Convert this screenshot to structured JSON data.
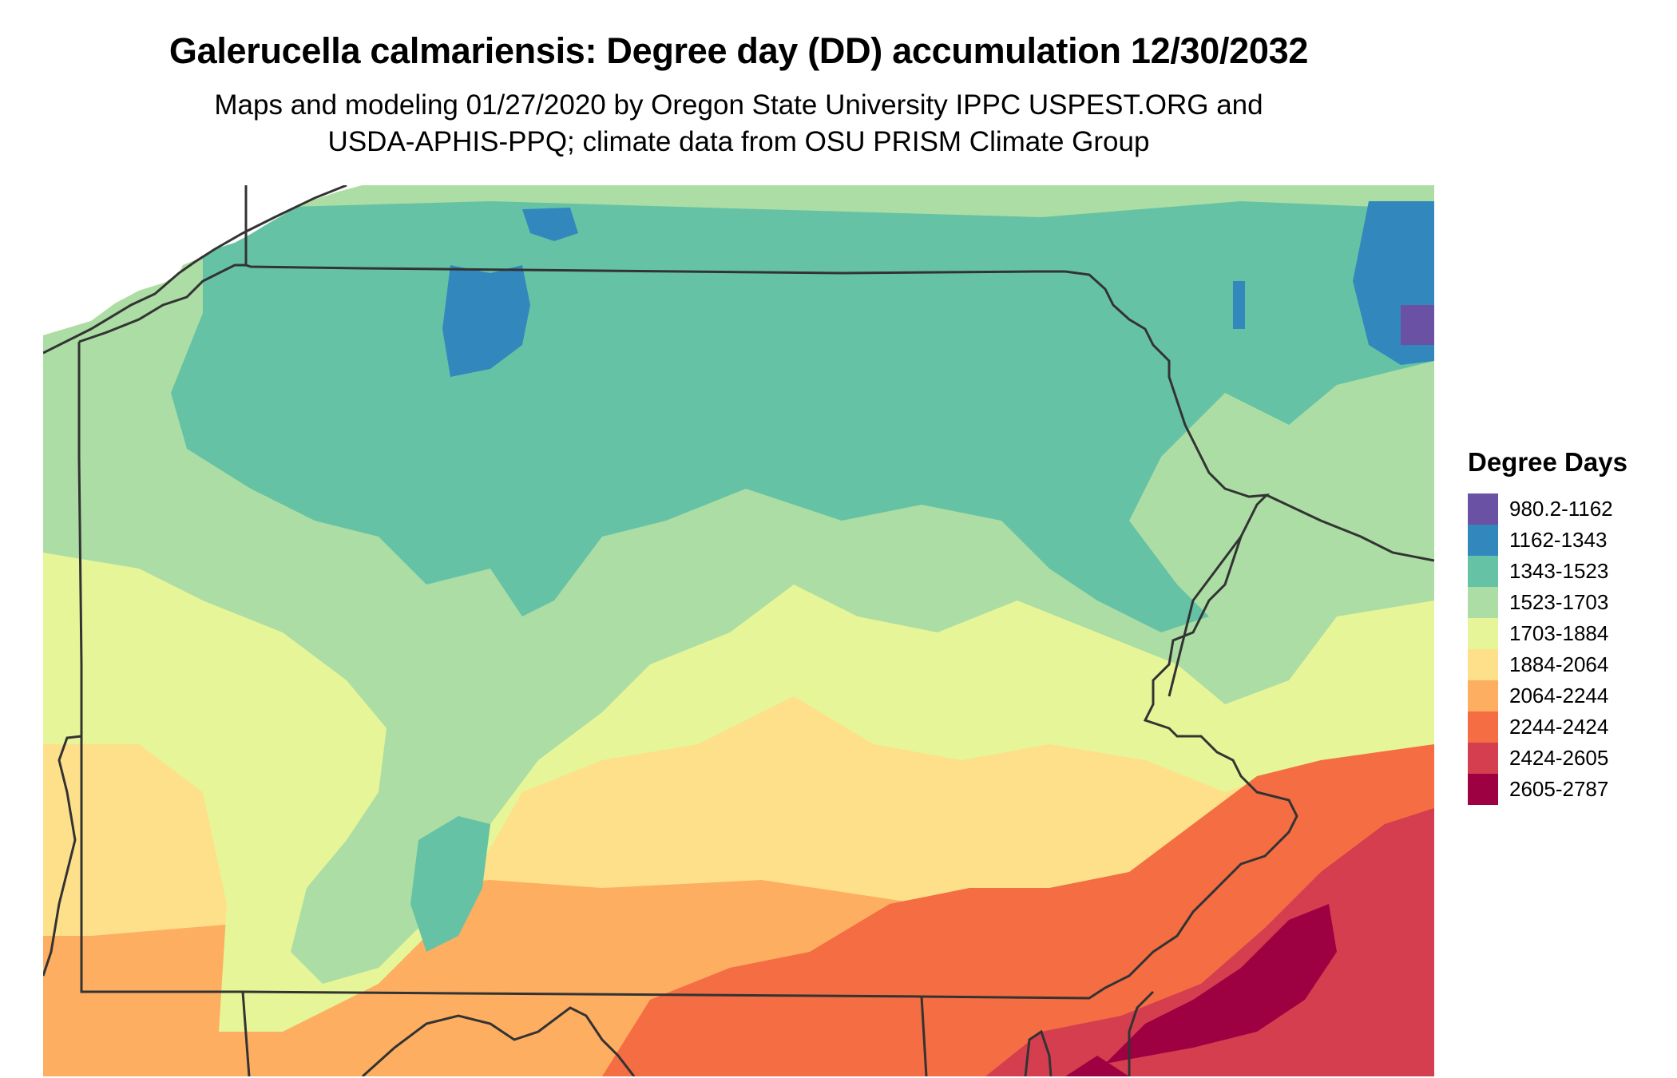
{
  "title": "Galerucella calmariensis: Degree day (DD) accumulation 12/30/2032",
  "subtitle_line1": "Maps and modeling 01/27/2020 by Oregon State University IPPC USPEST.ORG and",
  "subtitle_line2": "USDA-APHIS-PPQ; climate data from OSU PRISM Climate Group",
  "legend": {
    "title": "Degree Days",
    "items": [
      {
        "label": "980.2-1162",
        "color": "#6a51a3"
      },
      {
        "label": "1162-1343",
        "color": "#3288bd"
      },
      {
        "label": "1343-1523",
        "color": "#66c2a5"
      },
      {
        "label": "1523-1703",
        "color": "#abdda4"
      },
      {
        "label": "1703-1884",
        "color": "#e6f598"
      },
      {
        "label": "1884-2064",
        "color": "#fee08b"
      },
      {
        "label": "2064-2244",
        "color": "#fdae61"
      },
      {
        "label": "2244-2424",
        "color": "#f46d43"
      },
      {
        "label": "2424-2605",
        "color": "#d53e4f"
      },
      {
        "label": "2605-2787",
        "color": "#9e0142"
      }
    ]
  }
}
